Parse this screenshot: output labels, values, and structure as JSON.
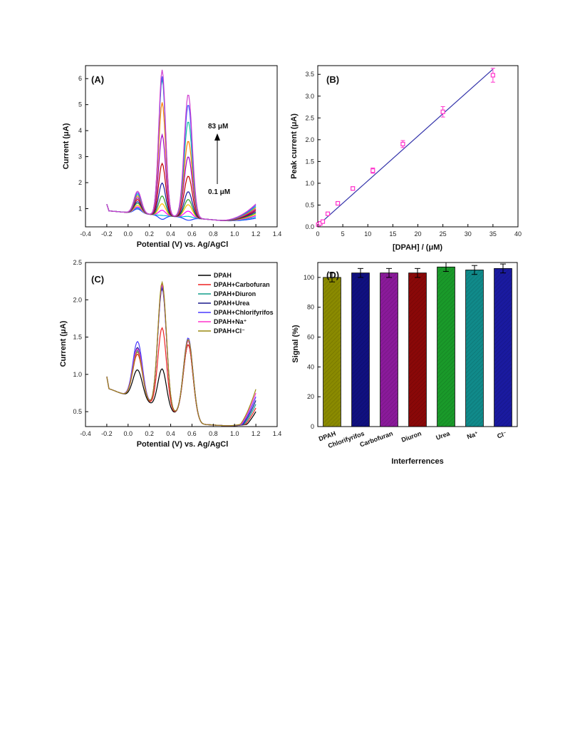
{
  "chart_data": [
    {
      "panel": "(A)",
      "type": "line",
      "xlabel": "Potential (V) vs. Ag/AgCl",
      "ylabel": "Current (μA)",
      "xlim": [
        -0.4,
        1.4
      ],
      "ylim": [
        0.3,
        6.5
      ],
      "xticks": [
        "-0.4",
        "-0.2",
        "0.0",
        "0.2",
        "0.4",
        "0.6",
        "0.8",
        "1.0",
        "1.2",
        "1.4"
      ],
      "yticks": [
        "1",
        "2",
        "3",
        "4",
        "5",
        "6"
      ],
      "annotations": {
        "top": "83 μM",
        "bottom": "0.1 μM"
      },
      "colors": [
        "#1f3cff",
        "#00bcd4",
        "#ff00ff",
        "#ffc000",
        "#2e9d2e",
        "#1a1aa0",
        "#c00000",
        "#a000c0",
        "#ff7f00",
        "#11bfa0",
        "#4050ff",
        "#d040d0"
      ],
      "series_peaks": [
        {
          "p1": 1.02,
          "p2": 0.55,
          "p3": 0.5
        },
        {
          "p1": 1.06,
          "p2": 0.7,
          "p3": 0.65
        },
        {
          "p1": 1.1,
          "p2": 0.9,
          "p3": 0.85
        },
        {
          "p1": 1.16,
          "p2": 1.15,
          "p3": 1.1
        },
        {
          "p1": 1.24,
          "p2": 1.45,
          "p3": 1.3
        },
        {
          "p1": 1.3,
          "p2": 1.95,
          "p3": 1.6
        },
        {
          "p1": 1.38,
          "p2": 2.7,
          "p3": 2.2
        },
        {
          "p1": 1.45,
          "p2": 3.8,
          "p3": 2.95
        },
        {
          "p1": 1.52,
          "p2": 5.05,
          "p3": 3.55
        },
        {
          "p1": 1.58,
          "p2": 5.95,
          "p3": 4.3
        },
        {
          "p1": 1.64,
          "p2": 6.05,
          "p3": 4.95
        },
        {
          "p1": 1.7,
          "p2": 6.3,
          "p3": 5.35
        }
      ]
    },
    {
      "panel": "(B)",
      "type": "scatter",
      "xlabel": "[DPAH] / (μM)",
      "ylabel": "Peak current (μA)",
      "xlim": [
        0,
        40
      ],
      "ylim": [
        0,
        3.7
      ],
      "xticks": [
        "0",
        "5",
        "10",
        "15",
        "20",
        "25",
        "30",
        "35",
        "40"
      ],
      "yticks": [
        "0.0",
        "0.5",
        "1.0",
        "1.5",
        "2.0",
        "2.5",
        "3.0",
        "3.5"
      ],
      "points": [
        {
          "x": 0.1,
          "y": 0.05,
          "err": 0.02
        },
        {
          "x": 0.5,
          "y": 0.08,
          "err": 0.02
        },
        {
          "x": 1,
          "y": 0.12,
          "err": 0.02
        },
        {
          "x": 2,
          "y": 0.3,
          "err": 0.03
        },
        {
          "x": 4,
          "y": 0.54,
          "err": 0.03
        },
        {
          "x": 7,
          "y": 0.88,
          "err": 0.04
        },
        {
          "x": 11,
          "y": 1.29,
          "err": 0.06
        },
        {
          "x": 17,
          "y": 1.9,
          "err": 0.08
        },
        {
          "x": 25,
          "y": 2.64,
          "err": 0.12
        },
        {
          "x": 35,
          "y": 3.48,
          "err": 0.16
        }
      ],
      "fit_line": {
        "x": [
          0,
          35
        ],
        "y": [
          0.03,
          3.62
        ]
      },
      "point_color": "#ff33cc",
      "line_color": "#3333aa"
    },
    {
      "panel": "(C)",
      "type": "line",
      "xlabel": "Potential (V) vs. Ag/AgCl",
      "ylabel": "Current (μA)",
      "xlim": [
        -0.4,
        1.4
      ],
      "ylim": [
        0.3,
        2.5
      ],
      "xticks": [
        "-0.4",
        "-0.2",
        "0.0",
        "0.2",
        "0.4",
        "0.6",
        "0.8",
        "1.0",
        "1.2",
        "1.4"
      ],
      "yticks": [
        "0.5",
        "1.0",
        "1.5",
        "2.0",
        "2.5"
      ],
      "series": [
        {
          "name": "DPAH",
          "color": "#000000",
          "p1": 1.12,
          "p2": 1.12,
          "p3": 1.45
        },
        {
          "name": "DPAH+Carbofuran",
          "color": "#ee2222",
          "p1": 1.33,
          "p2": 1.67,
          "p3": 1.45
        },
        {
          "name": "DPAH+Diuron",
          "color": "#129e8a",
          "p1": 1.38,
          "p2": 2.25,
          "p3": 1.5
        },
        {
          "name": "DPAH+Urea",
          "color": "#1a1a8c",
          "p1": 1.42,
          "p2": 2.2,
          "p3": 1.52
        },
        {
          "name": "DPAH+Chlorifyrifos",
          "color": "#4a3aff",
          "p1": 1.5,
          "p2": 2.23,
          "p3": 1.54
        },
        {
          "name": "DPAH+Na⁺",
          "color": "#ff33cc",
          "p1": 1.4,
          "p2": 2.25,
          "p3": 1.5
        },
        {
          "name": "DPAH+Cl⁻",
          "color": "#9a8a10",
          "p1": 1.36,
          "p2": 2.28,
          "p3": 1.52
        }
      ]
    },
    {
      "panel": "(D)",
      "type": "bar",
      "xlabel": "Interferrences",
      "ylabel": "Signal (%)",
      "ylim": [
        0,
        110
      ],
      "yticks": [
        "0",
        "20",
        "40",
        "60",
        "80",
        "100"
      ],
      "categories": [
        "DPAH",
        "Chlorifyrifos",
        "Carbofuran",
        "Diuron",
        "Urea",
        "Na⁺",
        "Cl⁻"
      ],
      "values": [
        100,
        103,
        103,
        103,
        107,
        105,
        106
      ],
      "errors": [
        3,
        3,
        3,
        3,
        3,
        3,
        3
      ],
      "colors": [
        "#8a8a00",
        "#101080",
        "#8a1a9a",
        "#8a0808",
        "#1a9a2a",
        "#108a8a",
        "#1a1aa0"
      ]
    }
  ]
}
